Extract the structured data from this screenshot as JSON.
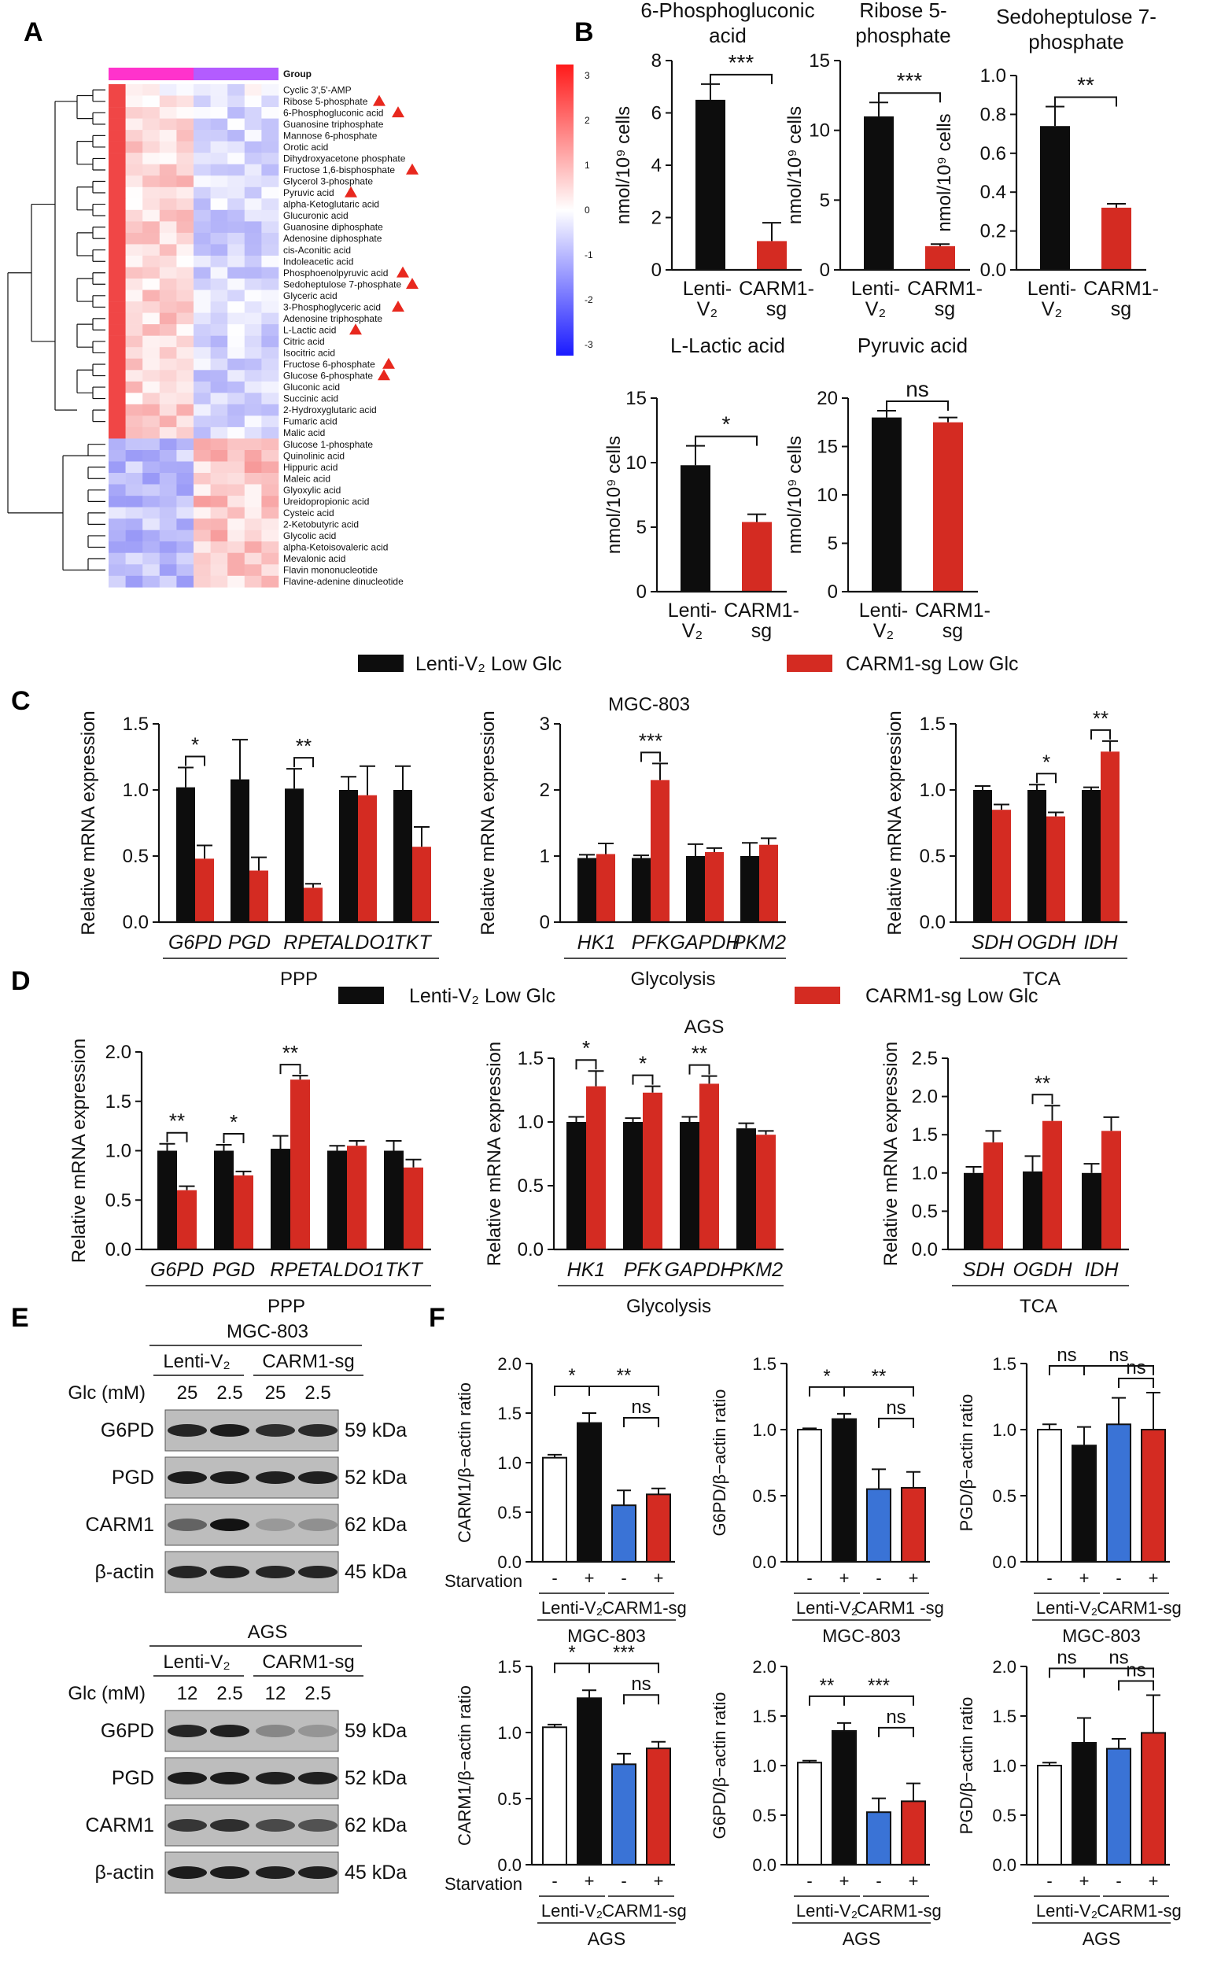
{
  "panel_labels": {
    "a": "A",
    "b": "B",
    "c": "C",
    "d": "D",
    "e": "E",
    "f": "F"
  },
  "colors": {
    "black": "#0d0d0d",
    "red": "#d42b22",
    "blue": "#3a73d6",
    "white": "#ffffff",
    "heat_hi": "#ee2a2a",
    "heat_lo": "#2a2aee",
    "group_pink": "#ff33cc",
    "group_violet": "#b35cff"
  },
  "heatmap": {
    "group_label": "Group",
    "scale_ticks": [
      "3",
      "2",
      "1",
      "0",
      "-1",
      "-2",
      "-3"
    ],
    "metabolites": [
      "Cyclic 3',5'-AMP",
      "Ribose 5-phosphate",
      "6-Phosphogluconic acid",
      "Guanosine triphosphate",
      "Mannose 6-phosphate",
      "Orotic acid",
      "Dihydroxyacetone phosphate",
      "Fructose 1,6-bisphosphate",
      "Glycerol 3-phosphate",
      "Pyruvic acid",
      "alpha-Ketoglutaric acid",
      "Glucuronic acid",
      "Guanosine diphosphate",
      "Adenosine diphosphate",
      "cis-Aconitic acid",
      "Indoleacetic acid",
      "Phosphoenolpyruvic acid",
      "Sedoheptulose 7-phosphate",
      "Glyceric acid",
      "3-Phosphoglyceric acid",
      "Adenosine triphosphate",
      "L-Lactic acid",
      "Citric acid",
      "Isocitric acid",
      "Fructose 6-phosphate",
      "Glucose 6-phosphate",
      "Gluconic acid",
      "Succinic acid",
      "2-Hydroxyglutaric acid",
      "Fumaric acid",
      "Malic acid",
      "Glucose 1-phosphate",
      "Quinolinic acid",
      "Hippuric acid",
      "Maleic acid",
      "Glyoxylic acid",
      "Ureidopropionic acid",
      "Cysteic acid",
      "2-Ketobutyric acid",
      "Glycolic acid",
      "alpha-Ketoisovaleric acid",
      "Mevalonic acid",
      "Flavin mononucleotide",
      "Flavine-adenine dinucleotide"
    ],
    "flagged": [
      "Ribose 5-phosphate",
      "6-Phosphogluconic acid",
      "Fructose 1,6-bisphosphate",
      "Pyruvic acid",
      "Phosphoenolpyruvic acid",
      "Sedoheptulose 7-phosphate",
      "3-Phosphoglyceric acid",
      "L-Lactic acid",
      "Fructose 6-phosphate",
      "Glucose 6-phosphate"
    ]
  },
  "chart_data": [
    {
      "id": "B1",
      "type": "bar",
      "title": "6-Phosphogluconic acid",
      "ylabel": "nmol/10⁹ cells",
      "ylim": [
        0,
        8
      ],
      "ticks": [
        "0",
        "2",
        "4",
        "6",
        "8"
      ],
      "categories": [
        "Lenti-V₂",
        "CARM1-sg"
      ],
      "values": [
        6.5,
        1.1
      ],
      "errors": [
        0.6,
        0.7
      ],
      "sig": [
        "***"
      ]
    },
    {
      "id": "B2",
      "type": "bar",
      "title": "Ribose 5-phosphate",
      "ylabel": "nmol/10⁹ cells",
      "ylim": [
        0,
        15
      ],
      "ticks": [
        "0",
        "5",
        "10",
        "15"
      ],
      "categories": [
        "Lenti-V₂",
        "CARM1-sg"
      ],
      "values": [
        11.0,
        1.7
      ],
      "errors": [
        1.0,
        0.15
      ],
      "sig": [
        "***"
      ]
    },
    {
      "id": "B3",
      "type": "bar",
      "title": "Sedoheptulose 7-phosphate",
      "ylabel": "nmol/10⁹ cells",
      "ylim": [
        0,
        1.0
      ],
      "ticks": [
        "0.0",
        "0.2",
        "0.4",
        "0.6",
        "0.8",
        "1.0"
      ],
      "categories": [
        "Lenti-V₂",
        "CARM1-sg"
      ],
      "values": [
        0.74,
        0.32
      ],
      "errors": [
        0.1,
        0.02
      ],
      "sig": [
        "**"
      ]
    },
    {
      "id": "B4",
      "type": "bar",
      "title": "L-Lactic acid",
      "ylabel": "nmol/10⁹ cells",
      "ylim": [
        0,
        15
      ],
      "ticks": [
        "0",
        "5",
        "10",
        "15"
      ],
      "categories": [
        "Lenti-V₂",
        "CARM1-sg"
      ],
      "values": [
        9.8,
        5.4
      ],
      "errors": [
        1.5,
        0.6
      ],
      "sig": [
        "*"
      ]
    },
    {
      "id": "B5",
      "type": "bar",
      "title": "Pyruvic acid",
      "ylabel": "nmol/10⁹ cells",
      "ylim": [
        0,
        20
      ],
      "ticks": [
        "0",
        "5",
        "10",
        "15",
        "20"
      ],
      "categories": [
        "Lenti-V₂",
        "CARM1-sg"
      ],
      "values": [
        18.0,
        17.5
      ],
      "errors": [
        0.7,
        0.5
      ],
      "sig": [
        "ns"
      ]
    },
    {
      "id": "C1",
      "type": "bar",
      "group": "PPP",
      "ylabel": "Relative  mRNA expression",
      "ylim": [
        0,
        1.5
      ],
      "ticks": [
        "0.0",
        "0.5",
        "1.0",
        "1.5"
      ],
      "categories": [
        "G6PD",
        "PGD",
        "RPE",
        "TALDO1",
        "TKT"
      ],
      "series": [
        {
          "name": "Lenti-V₂ Low Glc",
          "values": [
            1.02,
            1.08,
            1.01,
            1.0,
            1.0
          ],
          "errors": [
            0.15,
            0.3,
            0.15,
            0.1,
            0.18
          ]
        },
        {
          "name": "CARM1-sg Low Glc",
          "values": [
            0.48,
            0.39,
            0.26,
            0.96,
            0.57
          ],
          "errors": [
            0.1,
            0.1,
            0.03,
            0.22,
            0.15
          ]
        }
      ],
      "sig": [
        {
          "cat": 0,
          "label": "*"
        },
        {
          "cat": 2,
          "label": "**"
        }
      ]
    },
    {
      "id": "C2",
      "type": "bar",
      "group": "Glycolysis",
      "cell_line": "MGC-803",
      "ylabel": "Relative  mRNA expression",
      "ylim": [
        0,
        3
      ],
      "ticks": [
        "0",
        "1",
        "2",
        "3"
      ],
      "categories": [
        "HK1",
        "PFK",
        "GAPDH",
        "PKM2"
      ],
      "series": [
        {
          "name": "Lenti-V₂ Low Glc",
          "values": [
            0.97,
            0.97,
            1.0,
            1.0
          ],
          "errors": [
            0.05,
            0.04,
            0.18,
            0.2
          ]
        },
        {
          "name": "CARM1-sg Low Glc",
          "values": [
            1.03,
            2.15,
            1.06,
            1.17
          ],
          "errors": [
            0.16,
            0.25,
            0.06,
            0.1
          ]
        }
      ],
      "sig": [
        {
          "cat": 1,
          "label": "***"
        }
      ]
    },
    {
      "id": "C3",
      "type": "bar",
      "group": "TCA",
      "ylabel": "Relative  mRNA expression",
      "ylim": [
        0,
        1.5
      ],
      "ticks": [
        "0.0",
        "0.5",
        "1.0",
        "1.5"
      ],
      "categories": [
        "SDH",
        "OGDH",
        "IDH"
      ],
      "series": [
        {
          "name": "Lenti-V₂ Low Glc",
          "values": [
            1.0,
            1.0,
            1.0
          ],
          "errors": [
            0.03,
            0.04,
            0.02
          ]
        },
        {
          "name": "CARM1-sg Low Glc",
          "values": [
            0.85,
            0.8,
            1.29
          ],
          "errors": [
            0.04,
            0.03,
            0.08
          ]
        }
      ],
      "sig": [
        {
          "cat": 1,
          "label": "*"
        },
        {
          "cat": 2,
          "label": "**"
        }
      ]
    },
    {
      "id": "D1",
      "type": "bar",
      "group": "PPP",
      "ylabel": "Relative  mRNA expression",
      "ylim": [
        0,
        2.0
      ],
      "ticks": [
        "0.0",
        "0.5",
        "1.0",
        "1.5",
        "2.0"
      ],
      "categories": [
        "G6PD",
        "PGD",
        "RPE",
        "TALDO1",
        "TKT"
      ],
      "series": [
        {
          "name": "Lenti-V₂ Low Glc",
          "values": [
            1.0,
            1.0,
            1.02,
            1.0,
            1.0
          ],
          "errors": [
            0.07,
            0.06,
            0.13,
            0.05,
            0.1
          ]
        },
        {
          "name": "CARM1-sg Low Glc",
          "values": [
            0.6,
            0.75,
            1.72,
            1.05,
            0.83
          ],
          "errors": [
            0.04,
            0.04,
            0.04,
            0.05,
            0.08
          ]
        }
      ],
      "sig": [
        {
          "cat": 0,
          "label": "**"
        },
        {
          "cat": 1,
          "label": "*"
        },
        {
          "cat": 2,
          "label": "**"
        }
      ]
    },
    {
      "id": "D2",
      "type": "bar",
      "group": "Glycolysis",
      "cell_line": "AGS",
      "ylabel": "Relative  mRNA expression",
      "ylim": [
        0,
        1.5
      ],
      "ticks": [
        "0.0",
        "0.5",
        "1.0",
        "1.5"
      ],
      "categories": [
        "HK1",
        "PFK",
        "GAPDH",
        "PKM2"
      ],
      "series": [
        {
          "name": "Lenti-V₂ Low Glc",
          "values": [
            1.0,
            1.0,
            1.0,
            0.95
          ],
          "errors": [
            0.04,
            0.03,
            0.04,
            0.04
          ]
        },
        {
          "name": "CARM1-sg Low Glc",
          "values": [
            1.28,
            1.23,
            1.3,
            0.9
          ],
          "errors": [
            0.12,
            0.05,
            0.06,
            0.03
          ]
        }
      ],
      "sig": [
        {
          "cat": 0,
          "label": "*"
        },
        {
          "cat": 1,
          "label": "*"
        },
        {
          "cat": 2,
          "label": "**"
        }
      ]
    },
    {
      "id": "D3",
      "type": "bar",
      "group": "TCA",
      "ylabel": "Relative  mRNA expression",
      "ylim": [
        0,
        2.5
      ],
      "ticks": [
        "0.0",
        "0.5",
        "1.0",
        "1.5",
        "2.0",
        "2.5"
      ],
      "categories": [
        "SDH",
        "OGDH",
        "IDH"
      ],
      "series": [
        {
          "name": "Lenti-V₂ Low Glc",
          "values": [
            1.0,
            1.02,
            1.0
          ],
          "errors": [
            0.08,
            0.2,
            0.12
          ]
        },
        {
          "name": "CARM1-sg Low Glc",
          "values": [
            1.4,
            1.68,
            1.55
          ],
          "errors": [
            0.15,
            0.2,
            0.18
          ]
        }
      ],
      "sig": [
        {
          "cat": 1,
          "label": "**"
        }
      ]
    },
    {
      "id": "F1",
      "type": "bar",
      "cell_line": "MGC-803",
      "ylabel": "CARM1/β−actin ratio",
      "ylim": [
        0,
        2.0
      ],
      "ticks": [
        "0.0",
        "0.5",
        "1.0",
        "1.5",
        "2.0"
      ],
      "values": [
        1.05,
        1.4,
        0.57,
        0.68
      ],
      "errors": [
        0.03,
        0.1,
        0.15,
        0.06
      ],
      "sig": [
        "*",
        "**",
        "ns"
      ]
    },
    {
      "id": "F2",
      "type": "bar",
      "cell_line": "MGC-803",
      "ylabel": "G6PD/β−actin ratio",
      "ylim": [
        0,
        1.5
      ],
      "ticks": [
        "0.0",
        "0.5",
        "1.0",
        "1.5"
      ],
      "values": [
        1.0,
        1.08,
        0.55,
        0.56
      ],
      "errors": [
        0.01,
        0.04,
        0.15,
        0.12
      ],
      "sig": [
        "*",
        "**",
        "ns"
      ]
    },
    {
      "id": "F3",
      "type": "bar",
      "cell_line": "MGC-803",
      "ylabel": "PGD/β−actin ratio",
      "ylim": [
        0,
        1.5
      ],
      "ticks": [
        "0.0",
        "0.5",
        "1.0",
        "1.5"
      ],
      "values": [
        1.0,
        0.88,
        1.04,
        1.0
      ],
      "errors": [
        0.04,
        0.14,
        0.2,
        0.28
      ],
      "sig": [
        "ns",
        "ns",
        "ns"
      ]
    },
    {
      "id": "F4",
      "type": "bar",
      "cell_line": "AGS",
      "ylabel": "CARM1/β−actin ratio",
      "ylim": [
        0,
        1.5
      ],
      "ticks": [
        "0.0",
        "0.5",
        "1.0",
        "1.5"
      ],
      "values": [
        1.04,
        1.26,
        0.76,
        0.88
      ],
      "errors": [
        0.02,
        0.06,
        0.08,
        0.05
      ],
      "sig": [
        "*",
        "***",
        "ns"
      ]
    },
    {
      "id": "F5",
      "type": "bar",
      "cell_line": "AGS",
      "ylabel": "G6PD/β−actin ratio",
      "ylim": [
        0,
        2.0
      ],
      "ticks": [
        "0.0",
        "0.5",
        "1.0",
        "1.5",
        "2.0"
      ],
      "values": [
        1.03,
        1.35,
        0.53,
        0.64
      ],
      "errors": [
        0.02,
        0.08,
        0.14,
        0.18
      ],
      "sig": [
        "**",
        "***",
        "ns"
      ]
    },
    {
      "id": "F6",
      "type": "bar",
      "cell_line": "AGS",
      "ylabel": "PGD/β−actin ratio",
      "ylim": [
        0,
        2.0
      ],
      "ticks": [
        "0.0",
        "0.5",
        "1.0",
        "1.5",
        "2.0"
      ],
      "values": [
        1.0,
        1.23,
        1.17,
        1.33
      ],
      "errors": [
        0.03,
        0.25,
        0.1,
        0.38
      ],
      "sig": [
        "ns",
        "ns",
        "ns"
      ]
    }
  ],
  "legend": {
    "lenti": "Lenti-V₂ Low Glc",
    "carm": "CARM1-sg Low Glc"
  },
  "cell_lines": {
    "mgc": "MGC-803",
    "ags": "AGS"
  },
  "groups": {
    "ppp": "PPP",
    "glyco": "Glycolysis",
    "tca": "TCA"
  },
  "f_labels": {
    "starvation": "Starvation",
    "minus": "-",
    "plus": "+",
    "lenti": "Lenti-V₂",
    "carm": "CARM1 -sg",
    "carm2": "CARM1-sg"
  },
  "western": {
    "glc_label": "Glc (mM)",
    "lenti": "Lenti-V₂",
    "carm": "CARM1-sg",
    "mgc_glc": [
      "25",
      "2.5",
      "25",
      "2.5"
    ],
    "ags_glc": [
      "12",
      "2.5",
      "12",
      "2.5"
    ],
    "proteins": [
      {
        "name": "G6PD",
        "kda": "59 kDa"
      },
      {
        "name": "PGD",
        "kda": "52 kDa"
      },
      {
        "name": "CARM1",
        "kda": "62 kDa"
      },
      {
        "name": "β-actin",
        "kda": "45 kDa"
      }
    ]
  }
}
